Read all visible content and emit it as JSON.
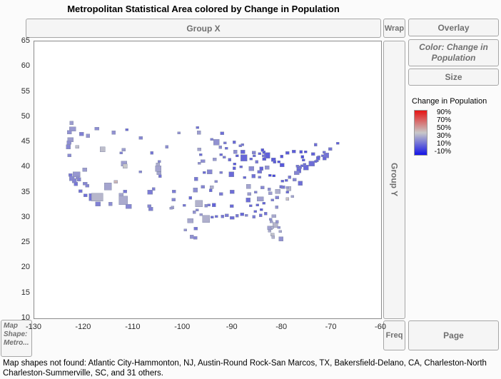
{
  "title": "Metropolitan Statistical Area colored by Change in Population",
  "zones": {
    "group_x": "Group X",
    "wrap": "Wrap",
    "overlay": "Overlay",
    "color": "Color: Change in Population",
    "size": "Size",
    "group_y": "Group Y",
    "freq": "Freq",
    "page": "Page",
    "map_shape": "Map Shape: Metro..."
  },
  "legend": {
    "title": "Change in Population",
    "labels": [
      "90%",
      "70%",
      "50%",
      "30%",
      "10%",
      "-10%"
    ]
  },
  "status": "Map shapes not found: Atlantic City-Hammonton, NJ, Austin-Round Rock-San Marcos, TX, Bakersfield-Delano, CA, Charleston-North Charleston-Summerville, SC, and 31 others.",
  "chart_data": {
    "type": "map",
    "subtype": "US metropolitan statistical areas shaded by percent change in population",
    "title": "Metropolitan Statistical Area colored by Change in Population",
    "xlabel": "",
    "ylabel": "",
    "xlim": [
      -130,
      -60
    ],
    "ylim": [
      10,
      65
    ],
    "x_ticks": [
      -130,
      -120,
      -110,
      -100,
      -90,
      -80,
      -70,
      -60
    ],
    "y_ticks": [
      65,
      60,
      55,
      50,
      45,
      40,
      35,
      30,
      25,
      20,
      15,
      10
    ],
    "grid": false,
    "legend_position": "right",
    "color_scale": {
      "label": "Change in Population",
      "domain": [
        -10,
        90
      ],
      "tick_labels_pct": [
        90,
        70,
        50,
        30,
        10,
        -10
      ],
      "low_color": "#1414e6",
      "mid_color": "#c8c8c8",
      "high_color": "#e61414"
    },
    "points_format": [
      "longitude",
      "latitude",
      "pct_change",
      "size_px"
    ],
    "points": [
      [
        -122.3,
        47.6,
        27,
        9
      ],
      [
        -122.9,
        47.0,
        25,
        6
      ],
      [
        -122.5,
        48.8,
        28,
        5
      ],
      [
        -117.4,
        47.7,
        24,
        6
      ],
      [
        -120.5,
        46.6,
        20,
        6
      ],
      [
        -119.2,
        46.25,
        26,
        5
      ],
      [
        -122.7,
        45.5,
        28,
        8
      ],
      [
        -123.0,
        44.9,
        24,
        6
      ],
      [
        -123.1,
        44.05,
        22,
        6
      ],
      [
        -122.9,
        42.35,
        23,
        5
      ],
      [
        -121.3,
        44.05,
        38,
        5
      ],
      [
        -116.2,
        43.6,
        37,
        7
      ],
      [
        -112.0,
        43.5,
        28,
        5
      ],
      [
        -112.45,
        42.87,
        20,
        4
      ],
      [
        -114.0,
        46.9,
        25,
        5
      ],
      [
        -108.5,
        45.8,
        22,
        5
      ],
      [
        -111.3,
        47.5,
        15,
        4
      ],
      [
        -106.3,
        42.85,
        17,
        4
      ],
      [
        -104.8,
        41.14,
        22,
        4
      ],
      [
        -111.9,
        40.76,
        28,
        8
      ],
      [
        -111.66,
        40.23,
        40,
        6
      ],
      [
        -113.58,
        37.1,
        45,
        5
      ],
      [
        -119.8,
        39.53,
        28,
        6
      ],
      [
        -115.1,
        36.2,
        30,
        10
      ],
      [
        -121.5,
        38.58,
        26,
        10
      ],
      [
        -122.42,
        37.77,
        22,
        7
      ],
      [
        -121.9,
        37.3,
        21,
        6
      ],
      [
        -122.7,
        38.44,
        18,
        5
      ],
      [
        -121.29,
        37.95,
        24,
        5
      ],
      [
        -120.99,
        37.64,
        21,
        5
      ],
      [
        -119.78,
        36.74,
        22,
        6
      ],
      [
        -119.3,
        36.33,
        21,
        5
      ],
      [
        -121.65,
        36.68,
        17,
        5
      ],
      [
        -120.66,
        35.28,
        16,
        5
      ],
      [
        -119.7,
        34.42,
        15,
        5
      ],
      [
        -118.24,
        34.05,
        17,
        10
      ],
      [
        -117.3,
        34.1,
        35,
        16
      ],
      [
        -117.16,
        32.72,
        20,
        7
      ],
      [
        -112.07,
        33.45,
        32,
        12
      ],
      [
        -110.93,
        32.22,
        22,
        8
      ],
      [
        -111.65,
        35.2,
        18,
        5
      ],
      [
        -114.62,
        32.69,
        24,
        5
      ],
      [
        -112.47,
        34.54,
        30,
        6
      ],
      [
        -106.65,
        35.08,
        19,
        7
      ],
      [
        -105.94,
        35.69,
        20,
        4
      ],
      [
        -106.78,
        32.32,
        22,
        5
      ],
      [
        -106.49,
        31.76,
        20,
        6
      ],
      [
        -104.99,
        39.74,
        30,
        8
      ],
      [
        -104.82,
        38.83,
        30,
        6
      ],
      [
        -105.08,
        40.59,
        32,
        5
      ],
      [
        -104.61,
        38.25,
        17,
        4
      ],
      [
        -108.55,
        39.07,
        22,
        4
      ],
      [
        -100.78,
        46.81,
        25,
        4
      ],
      [
        -96.79,
        46.88,
        28,
        5
      ],
      [
        -97.08,
        47.92,
        16,
        4
      ],
      [
        -96.73,
        43.55,
        30,
        5
      ],
      [
        -103.23,
        44.08,
        24,
        4
      ],
      [
        -96.0,
        41.26,
        24,
        6
      ],
      [
        -96.68,
        40.81,
        25,
        4
      ],
      [
        -97.34,
        37.69,
        18,
        5
      ],
      [
        -95.69,
        38.98,
        14,
        4
      ],
      [
        -94.58,
        39.1,
        22,
        7
      ],
      [
        -93.27,
        44.98,
        25,
        8
      ],
      [
        -92.1,
        46.79,
        15,
        5
      ],
      [
        -94.16,
        45.56,
        20,
        4
      ],
      [
        -92.46,
        44.02,
        23,
        4
      ],
      [
        -93.62,
        41.59,
        27,
        5
      ],
      [
        -91.67,
        41.98,
        19,
        4
      ],
      [
        -90.58,
        41.52,
        14,
        4
      ],
      [
        -96.4,
        42.5,
        15,
        4
      ],
      [
        -92.34,
        42.49,
        14,
        4
      ],
      [
        -97.52,
        35.47,
        24,
        6
      ],
      [
        -95.99,
        36.15,
        21,
        5
      ],
      [
        -96.8,
        32.78,
        34,
        10
      ],
      [
        -95.36,
        29.76,
        33,
        10
      ],
      [
        -98.49,
        29.42,
        31,
        8
      ],
      [
        -97.15,
        31.55,
        22,
        4
      ],
      [
        -97.73,
        31.12,
        25,
        4
      ],
      [
        -101.88,
        33.58,
        22,
        5
      ],
      [
        -101.83,
        35.2,
        19,
        5
      ],
      [
        -102.08,
        32.0,
        30,
        4
      ],
      [
        -102.37,
        31.85,
        27,
        4
      ],
      [
        -99.73,
        32.45,
        17,
        4
      ],
      [
        -98.49,
        33.9,
        13,
        4
      ],
      [
        -97.4,
        27.8,
        17,
        5
      ],
      [
        -97.5,
        26.0,
        22,
        5
      ],
      [
        -98.23,
        26.21,
        25,
        5
      ],
      [
        -99.5,
        27.53,
        26,
        4
      ],
      [
        -94.1,
        30.08,
        14,
        4
      ],
      [
        -95.3,
        32.35,
        23,
        4
      ],
      [
        -94.74,
        32.5,
        17,
        4
      ],
      [
        -96.33,
        30.63,
        27,
        4
      ],
      [
        -93.75,
        32.52,
        12,
        5
      ],
      [
        -92.29,
        34.74,
        19,
        5
      ],
      [
        -94.16,
        36.08,
        33,
        5
      ],
      [
        -94.4,
        35.39,
        14,
        4
      ],
      [
        -90.08,
        29.95,
        15,
        6
      ],
      [
        -91.15,
        30.45,
        19,
        5
      ],
      [
        -92.02,
        30.22,
        17,
        4
      ],
      [
        -93.22,
        30.21,
        15,
        4
      ],
      [
        -90.18,
        32.3,
        14,
        5
      ],
      [
        -89.09,
        30.4,
        18,
        4
      ],
      [
        -88.04,
        30.69,
        13,
        5
      ],
      [
        -86.3,
        32.37,
        14,
        4
      ],
      [
        -86.8,
        33.52,
        15,
        6
      ],
      [
        -86.59,
        34.73,
        28,
        5
      ],
      [
        -90.05,
        35.15,
        15,
        6
      ],
      [
        -86.78,
        36.17,
        30,
        6
      ],
      [
        -83.92,
        35.96,
        22,
        5
      ],
      [
        -85.31,
        35.05,
        21,
        4
      ],
      [
        -90.2,
        38.63,
        14,
        7
      ],
      [
        -93.29,
        37.21,
        23,
        4
      ],
      [
        -92.33,
        38.95,
        20,
        4
      ],
      [
        -87.69,
        41.84,
        13,
        9
      ],
      [
        -89.09,
        42.27,
        10,
        4
      ],
      [
        -89.59,
        40.69,
        9,
        4
      ],
      [
        -89.65,
        39.8,
        11,
        4
      ],
      [
        -88.24,
        40.11,
        14,
        4
      ],
      [
        -87.91,
        43.04,
        13,
        6
      ],
      [
        -89.4,
        43.07,
        24,
        5
      ],
      [
        -88.02,
        44.52,
        17,
        4
      ],
      [
        -88.41,
        44.27,
        18,
        4
      ],
      [
        -89.63,
        44.96,
        14,
        4
      ],
      [
        -91.5,
        44.82,
        18,
        4
      ],
      [
        -91.24,
        43.8,
        15,
        4
      ],
      [
        -83.05,
        42.33,
        11,
        8
      ],
      [
        -85.67,
        42.96,
        21,
        5
      ],
      [
        -84.56,
        42.73,
        13,
        4
      ],
      [
        -83.69,
        43.01,
        9,
        4
      ],
      [
        -83.74,
        42.28,
        16,
        4
      ],
      [
        -85.59,
        42.29,
        14,
        4
      ],
      [
        -83.95,
        43.42,
        8,
        4
      ],
      [
        -83.56,
        41.66,
        10,
        5
      ],
      [
        -81.69,
        41.5,
        9,
        6
      ],
      [
        -81.52,
        41.08,
        10,
        4
      ],
      [
        -80.65,
        41.1,
        7,
        4
      ],
      [
        -82.99,
        39.96,
        25,
        6
      ],
      [
        -84.19,
        39.76,
        12,
        5
      ],
      [
        -84.51,
        39.1,
        17,
        6
      ],
      [
        -86.16,
        39.77,
        23,
        7
      ],
      [
        -85.14,
        41.09,
        18,
        4
      ],
      [
        -86.25,
        41.68,
        12,
        4
      ],
      [
        -87.57,
        37.98,
        13,
        4
      ],
      [
        -85.76,
        38.25,
        16,
        5
      ],
      [
        -84.5,
        38.05,
        19,
        4
      ],
      [
        -79.99,
        40.44,
        9,
        6
      ],
      [
        -80.08,
        42.13,
        8,
        4
      ],
      [
        -78.88,
        42.89,
        10,
        5
      ],
      [
        -77.61,
        43.16,
        10,
        5
      ],
      [
        -76.15,
        43.05,
        9,
        4
      ],
      [
        -73.76,
        42.65,
        12,
        5
      ],
      [
        -75.23,
        43.1,
        7,
        4
      ],
      [
        -75.91,
        42.1,
        6,
        4
      ],
      [
        -75.66,
        41.41,
        9,
        4
      ],
      [
        -74.0,
        40.71,
        15,
        8
      ],
      [
        -75.16,
        39.95,
        14,
        7
      ],
      [
        -75.49,
        40.6,
        15,
        4
      ],
      [
        -76.88,
        40.27,
        15,
        4
      ],
      [
        -76.3,
        40.04,
        16,
        4
      ],
      [
        -76.73,
        39.96,
        14,
        4
      ],
      [
        -75.93,
        40.34,
        14,
        4
      ],
      [
        -76.61,
        39.29,
        13,
        6
      ],
      [
        -77.04,
        38.9,
        21,
        7
      ],
      [
        -77.46,
        37.55,
        22,
        5
      ],
      [
        -76.29,
        36.85,
        15,
        6
      ],
      [
        -79.94,
        37.27,
        12,
        4
      ],
      [
        -79.14,
        37.41,
        13,
        4
      ],
      [
        -78.48,
        38.03,
        18,
        4
      ],
      [
        -81.63,
        38.35,
        4,
        4
      ],
      [
        -82.44,
        38.41,
        5,
        4
      ],
      [
        -71.06,
        42.36,
        16,
        7
      ],
      [
        -71.8,
        42.26,
        14,
        4
      ],
      [
        -72.59,
        42.1,
        11,
        4
      ],
      [
        -72.69,
        41.76,
        12,
        5
      ],
      [
        -72.93,
        41.31,
        12,
        4
      ],
      [
        -73.19,
        41.18,
        13,
        4
      ],
      [
        -71.41,
        41.82,
        13,
        5
      ],
      [
        -70.26,
        43.66,
        17,
        5
      ],
      [
        -68.77,
        44.8,
        11,
        4
      ],
      [
        -73.21,
        44.48,
        15,
        4
      ],
      [
        -71.46,
        42.99,
        16,
        4
      ],
      [
        -80.84,
        35.23,
        33,
        7
      ],
      [
        -78.64,
        35.78,
        35,
        6
      ],
      [
        -78.9,
        36.0,
        27,
        4
      ],
      [
        -79.79,
        36.07,
        18,
        5
      ],
      [
        -80.24,
        36.1,
        17,
        4
      ],
      [
        -78.88,
        35.05,
        14,
        4
      ],
      [
        -77.91,
        34.22,
        30,
        4
      ],
      [
        -82.55,
        35.6,
        24,
        4
      ],
      [
        -81.03,
        34.0,
        21,
        5
      ],
      [
        -82.39,
        34.85,
        28,
        5
      ],
      [
        -78.88,
        33.69,
        42,
        4
      ],
      [
        -84.39,
        33.75,
        29,
        9
      ],
      [
        -81.97,
        33.47,
        19,
        4
      ],
      [
        -81.09,
        32.08,
        25,
        4
      ],
      [
        -83.63,
        32.84,
        12,
        4
      ],
      [
        -84.99,
        32.49,
        13,
        4
      ],
      [
        -84.28,
        30.44,
        17,
        4
      ],
      [
        -81.66,
        30.33,
        31,
        6
      ],
      [
        -82.32,
        29.65,
        23,
        4
      ],
      [
        -81.38,
        28.54,
        35,
        7
      ],
      [
        -82.46,
        27.95,
        29,
        7
      ],
      [
        -81.95,
        28.04,
        33,
        4
      ],
      [
        -81.02,
        29.21,
        26,
        4
      ],
      [
        -80.61,
        28.08,
        25,
        4
      ],
      [
        -80.35,
        27.3,
        31,
        4
      ],
      [
        -80.19,
        25.77,
        25,
        6
      ],
      [
        -81.95,
        26.64,
        38,
        5
      ],
      [
        -82.53,
        27.34,
        32,
        4
      ],
      [
        -81.78,
        26.14,
        34,
        4
      ],
      [
        -82.13,
        29.19,
        29,
        4
      ],
      [
        -87.22,
        30.42,
        22,
        4
      ],
      [
        -85.66,
        30.17,
        19,
        4
      ],
      [
        -85.39,
        31.22,
        14,
        4
      ],
      [
        -84.16,
        31.58,
        10,
        4
      ],
      [
        -83.28,
        30.83,
        16,
        4
      ]
    ]
  }
}
